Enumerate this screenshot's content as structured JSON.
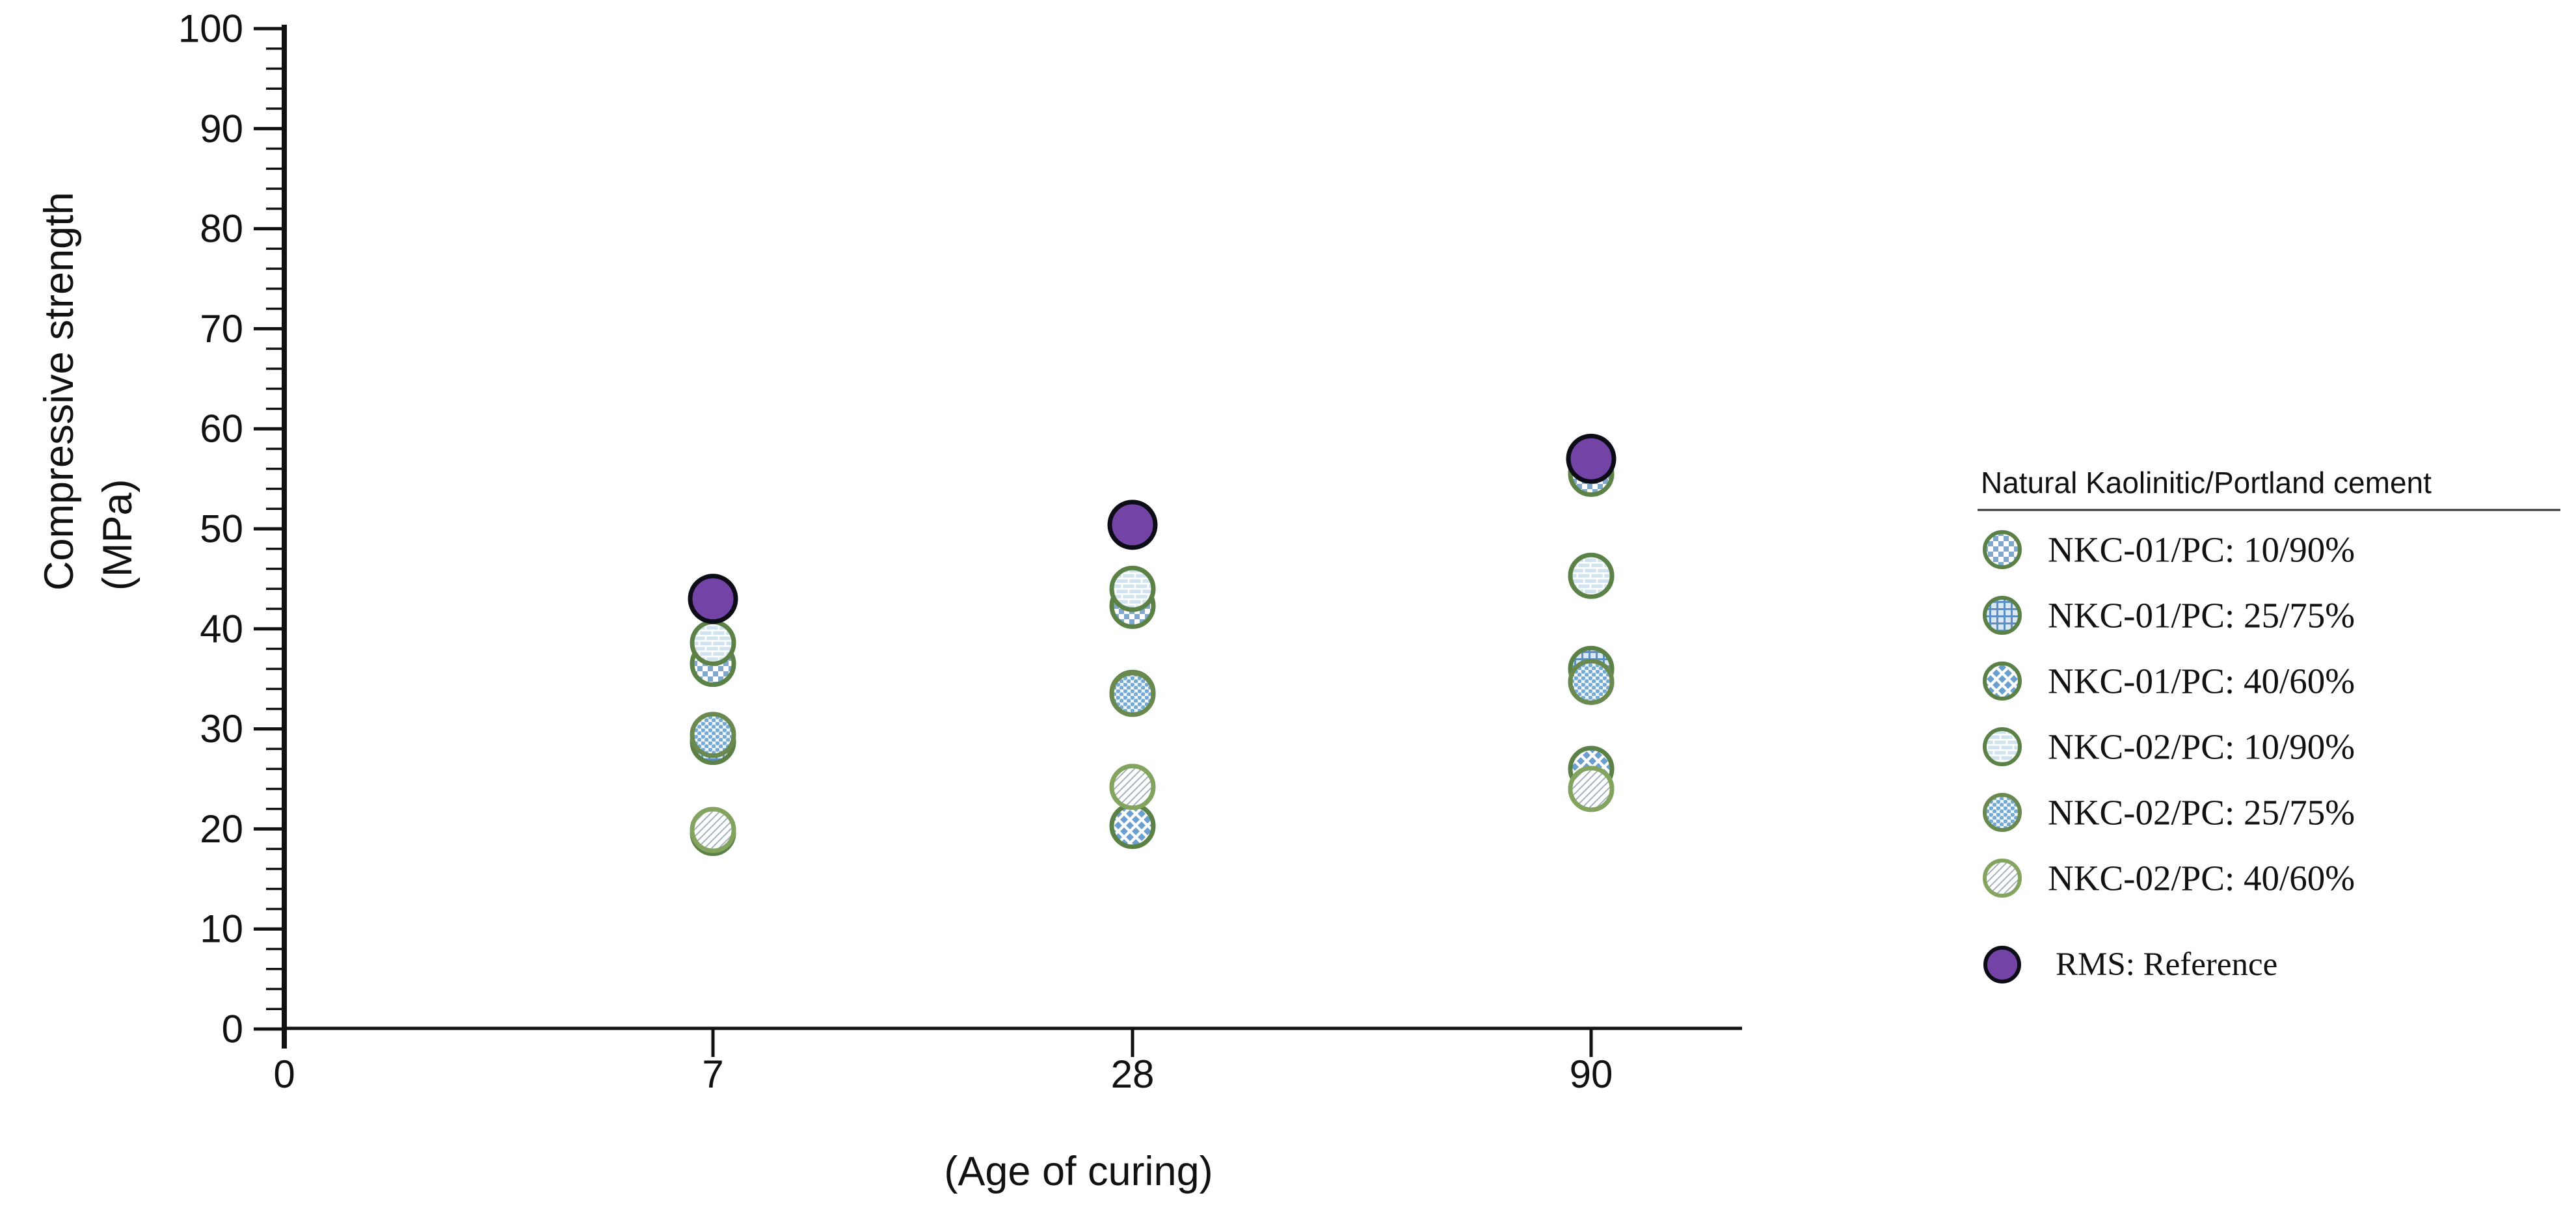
{
  "figure": {
    "background": "#ffffff"
  },
  "chart_data": {
    "type": "scatter",
    "title": "",
    "xlabel": "(Age of curing)",
    "ylabel": "Compressive strength (MPa)",
    "ylabel_line1": "Compressive strength",
    "ylabel_line2": "(MPa)",
    "x_tick_labels": [
      "0",
      "7",
      "28",
      "90"
    ],
    "ages_days": [
      7,
      28,
      90
    ],
    "ylim": [
      0,
      100
    ],
    "ytick_major_step": 10,
    "ytick_minor_step": 2,
    "grid": false,
    "legend_position": "right-outside",
    "axis_color": "#111111",
    "series": [
      {
        "name": "NKC-01/PC: 10/90%",
        "marker": "check",
        "ring_color": "#5c8147",
        "pattern_color": "#7fa8cc",
        "values": [
          36.5,
          42.3,
          55.5
        ]
      },
      {
        "name": "NKC-01/PC: 25/75%",
        "marker": "grid",
        "ring_color": "#5c8147",
        "pattern_color": "#5b8fc6",
        "values": [
          28.7,
          33.6,
          36.0
        ]
      },
      {
        "name": "NKC-01/PC: 40/60%",
        "marker": "diamond",
        "ring_color": "#5c8147",
        "pattern_color": "#6b9fd0",
        "values": [
          19.6,
          20.3,
          26.0
        ]
      },
      {
        "name": "NKC-02/PC: 10/90%",
        "marker": "brick",
        "ring_color": "#5c8147",
        "pattern_color": "#cfe4f0",
        "values": [
          38.6,
          44.0,
          45.3
        ]
      },
      {
        "name": "NKC-02/PC: 25/75%",
        "marker": "dots",
        "ring_color": "#69894f",
        "pattern_color": "#74aad4",
        "values": [
          29.4,
          33.5,
          34.7
        ]
      },
      {
        "name": "NKC-02/PC: 40/60%",
        "marker": "diagonal",
        "ring_color": "#83a45e",
        "pattern_color": "#a3b1bd",
        "values": [
          19.9,
          24.2,
          24.0
        ]
      },
      {
        "name": "RMS: Reference",
        "marker": "solid",
        "ring_color": "#0d0d18",
        "fill_color": "#7344a6",
        "values": [
          43.0,
          50.4,
          57.0
        ]
      }
    ],
    "draw_order": [
      1,
      2,
      4,
      5,
      0,
      3,
      6
    ],
    "legend": {
      "title": "Natural Kaolinitic/Portland cement",
      "item_series_indexes": [
        0,
        1,
        2,
        3,
        4,
        5
      ],
      "reference_series_index": 6
    }
  }
}
